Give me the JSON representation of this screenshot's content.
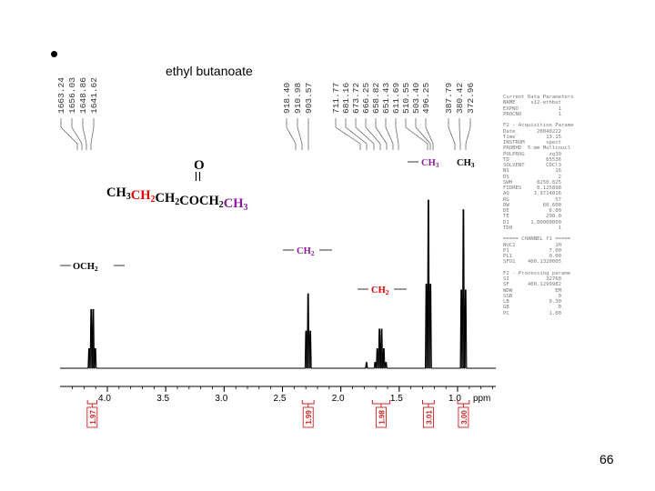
{
  "slide": {
    "title": "ethyl butanoate",
    "page_number": "66"
  },
  "colors": {
    "black": "#000000",
    "red": "#e00000",
    "purple": "#8a1a9a",
    "integral": "#d22020"
  },
  "formula": {
    "carbonyl": "O",
    "parts": [
      {
        "text": "CH",
        "sub": "3",
        "color": "#000000"
      },
      {
        "text": "CH",
        "sub": "2",
        "color": "#e00000"
      },
      {
        "text": "CH",
        "sub": "2",
        "color": "#000000"
      },
      {
        "text": "COCH",
        "sub": "2",
        "color": "#000000"
      },
      {
        "text": "CH",
        "sub": "3",
        "color": "#8a1a9a"
      }
    ]
  },
  "peak_labels": [
    {
      "text": "OCH",
      "sub": "2",
      "color": "#000000"
    },
    {
      "text": "CH",
      "sub": "2",
      "color": "#8a1a9a"
    },
    {
      "text": "CH",
      "sub": "2",
      "color": "#e00000"
    },
    {
      "text": "CH",
      "sub": "3",
      "color": "#8a1a9a"
    },
    {
      "text": "CH",
      "sub": "3",
      "color": "#000000"
    }
  ],
  "peak_list_groups": [
    [
      "1663.24",
      "1656.03",
      "1648.86",
      "1641.62"
    ],
    [
      "918.40",
      "910.98",
      "903.57"
    ],
    [
      "711.77",
      "681.16",
      "673.72",
      "666.25",
      "658.82",
      "651.43",
      "611.69",
      "510.55",
      "503.40",
      "496.25"
    ],
    [
      "387.79",
      "380.42",
      "372.96"
    ]
  ],
  "acquisition_params": [
    "Current Data Parameters",
    "NAME     s12-ethbut",
    "EXPNO             1",
    "PROCNO            1",
    "",
    "F2 - Acquisition Parame",
    "Date_      20040222",
    "Time          13.15",
    "INSTRUM       spect",
    "PROBHD  5 mm Multinucl",
    "PULPROG        zg30",
    "TD            65536",
    "SOLVENT       CDCl3",
    "NS               16",
    "DS                2",
    "SWH        8250.825",
    "FIDRES     0.125898",
    "AQ        3.9714816",
    "RG               57",
    "DW           60.600",
    "DE             6.00",
    "TE            298.0",
    "D1       1.00000000",
    "TD0               1",
    "",
    "===== CHANNEL f1 =====",
    "NUC1             1H",
    "P1             7.00",
    "PL1            0.00",
    "SFO1    400.1320005",
    "",
    "F2 - Processing parame",
    "SI            32768",
    "SF      400.1299982",
    "WDW              EM",
    "SSB               0",
    "LB             0.30",
    "GB                0",
    "PC             1.00"
  ],
  "chart_data": {
    "type": "line",
    "title": "ethyl butanoate",
    "xlabel": "ppm",
    "ylabel": "",
    "xlim": [
      4.35,
      0.6
    ],
    "x_reversed": true,
    "grid": false,
    "x_ticks": [
      "4.0",
      "3.5",
      "3.0",
      "2.5",
      "2.0",
      "1.5",
      "1.0"
    ],
    "x_tick_values": [
      4.0,
      3.5,
      3.0,
      2.5,
      2.0,
      1.5,
      1.0
    ],
    "minor_tick_step": 0.1,
    "baseline": 0,
    "peaks": [
      {
        "label": "OCH2",
        "multiplet": "quartet",
        "shift": 4.13,
        "spacing": 0.0179,
        "heights": [
          0.1,
          0.3,
          0.3,
          0.1
        ]
      },
      {
        "label": "CH2 (purple)",
        "multiplet": "triplet",
        "shift": 2.28,
        "spacing": 0.0185,
        "heights": [
          0.19,
          0.38,
          0.19
        ]
      },
      {
        "label": "CH2 (red)",
        "multiplet": "sextet",
        "shift": 1.66,
        "spacing": 0.0186,
        "heights": [
          0.03,
          0.1,
          0.2,
          0.2,
          0.1,
          0.03
        ]
      },
      {
        "label": "CH3 (purple)",
        "multiplet": "triplet",
        "shift": 1.25,
        "spacing": 0.0179,
        "heights": [
          0.43,
          0.86,
          0.43
        ]
      },
      {
        "label": "CH3 (black)",
        "multiplet": "triplet",
        "shift": 0.95,
        "spacing": 0.0184,
        "heights": [
          0.4,
          0.81,
          0.4
        ]
      }
    ],
    "small_peaks": [
      {
        "shift": 1.78,
        "height": 0.03
      }
    ],
    "integrals": [
      {
        "value": "1.97",
        "from": 4.17,
        "to": 4.09
      },
      {
        "value": "1.99",
        "from": 2.33,
        "to": 2.23
      },
      {
        "value": "1.98",
        "from": 1.73,
        "to": 1.58
      },
      {
        "value": "3.01",
        "from": 1.3,
        "to": 1.2
      },
      {
        "value": "3.00",
        "from": 1.0,
        "to": 0.9
      }
    ]
  }
}
